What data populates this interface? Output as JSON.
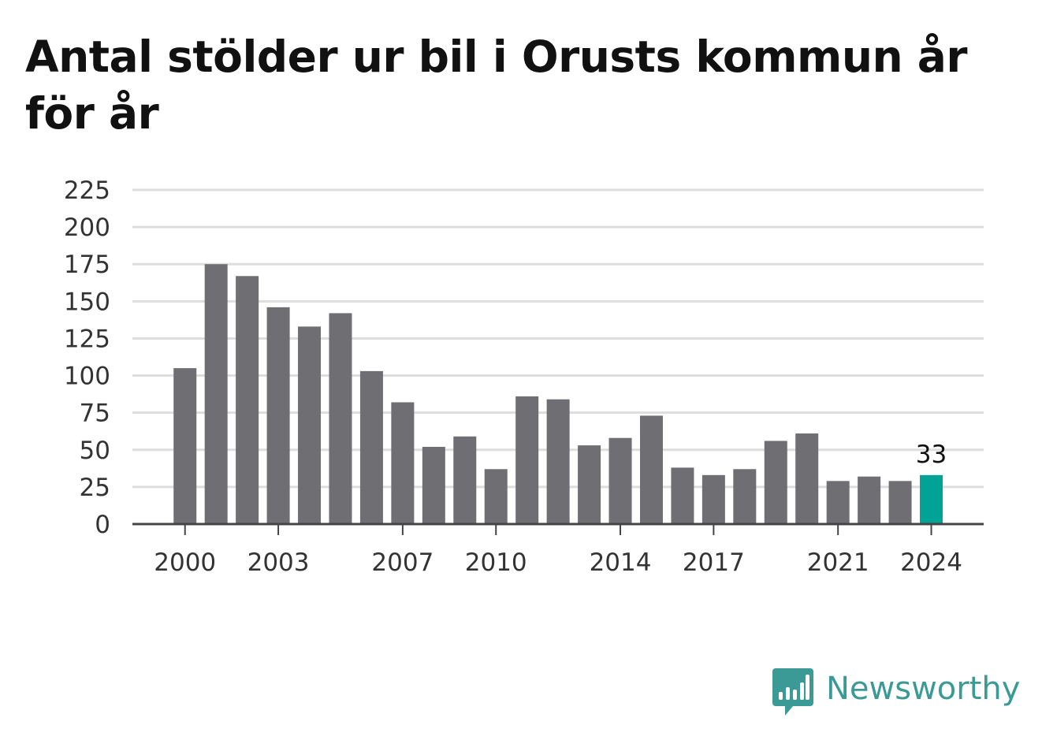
{
  "title": "Antal stölder ur bil i Orusts kommun år för år",
  "chart_data": {
    "type": "bar",
    "title": "Antal stölder ur bil i Orusts kommun år för år",
    "xlabel": "",
    "ylabel": "",
    "categories": [
      "2000",
      "2001",
      "2002",
      "2003",
      "2004",
      "2005",
      "2006",
      "2007",
      "2008",
      "2009",
      "2010",
      "2011",
      "2012",
      "2013",
      "2014",
      "2015",
      "2016",
      "2017",
      "2018",
      "2019",
      "2020",
      "2021",
      "2022",
      "2023",
      "2024"
    ],
    "values": [
      105,
      175,
      167,
      146,
      133,
      142,
      103,
      82,
      52,
      59,
      37,
      86,
      84,
      53,
      58,
      73,
      38,
      33,
      37,
      56,
      61,
      29,
      32,
      29,
      33
    ],
    "ylim": [
      0,
      225
    ],
    "y_ticks": [
      0,
      25,
      50,
      75,
      100,
      125,
      150,
      175,
      200,
      225
    ],
    "x_tick_labels": [
      "2000",
      "2003",
      "2007",
      "2010",
      "2014",
      "2017",
      "2021",
      "2024"
    ],
    "grid": true,
    "highlight_index": 24,
    "highlight_label": "33",
    "colors": {
      "bar": "#6e6e73",
      "highlight": "#00a396",
      "grid": "#dddddd",
      "axis": "#444444"
    }
  },
  "brand": {
    "name": "Newsworthy",
    "color": "#3b9a96",
    "icon": "bar-chart-speech-bubble-icon"
  }
}
